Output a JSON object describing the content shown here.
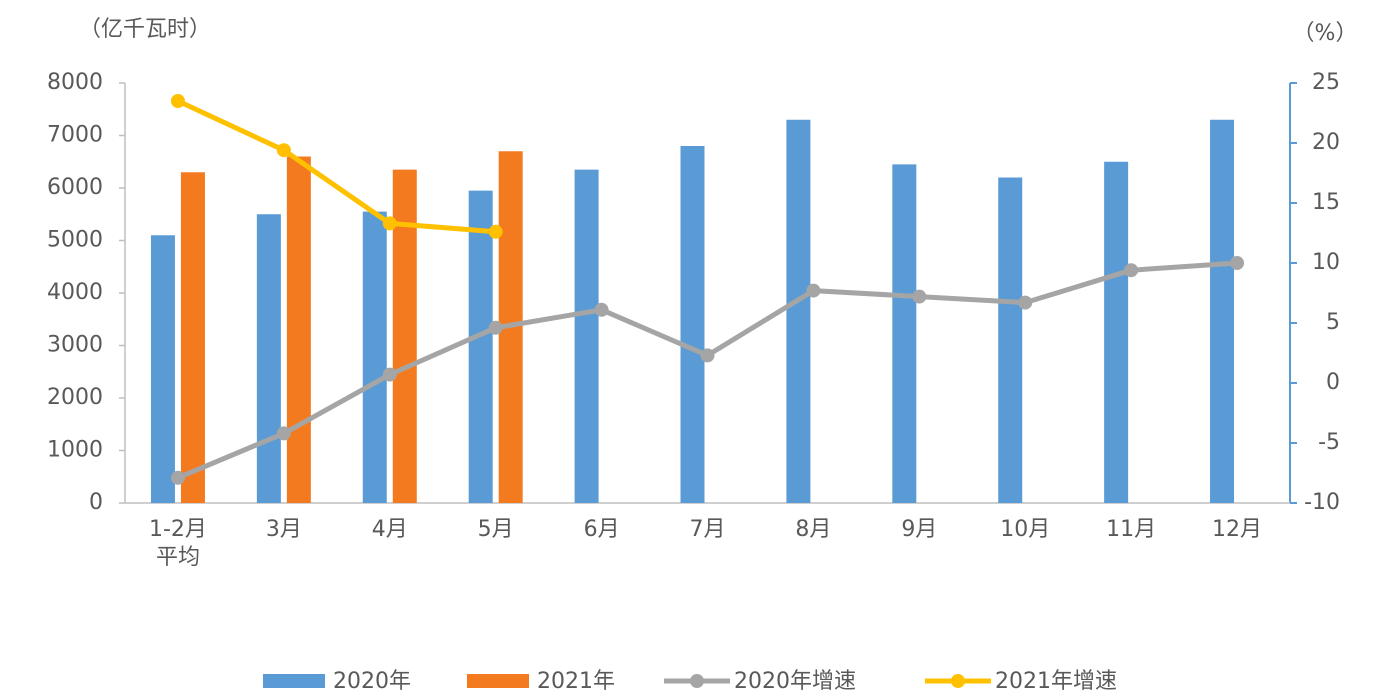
{
  "chart_data": {
    "type": "bar",
    "y_label": "（亿千瓦时）",
    "y2_label": "（%）",
    "categories": [
      "1-2月平均",
      "3月",
      "4月",
      "5月",
      "6月",
      "7月",
      "8月",
      "9月",
      "10月",
      "11月",
      "12月"
    ],
    "series": [
      {
        "name": "2020年",
        "color": "#5b9bd5",
        "values": [
          5100,
          5500,
          5550,
          5950,
          6350,
          6800,
          7300,
          6450,
          6200,
          6500,
          7300
        ]
      },
      {
        "name": "2021年",
        "color": "#f47a20",
        "values": [
          6300,
          6600,
          6350,
          6700,
          null,
          null,
          null,
          null,
          null,
          null,
          null
        ]
      },
      {
        "name": "2020年增速",
        "type": "line",
        "axis": "y2",
        "color": "#a5a5a5",
        "values": [
          -7.9,
          -4.2,
          0.7,
          4.6,
          6.1,
          2.3,
          7.7,
          7.2,
          6.7,
          9.4,
          10.0
        ]
      },
      {
        "name": "2021年增速",
        "type": "line",
        "axis": "y2",
        "color": "#ffc000",
        "values": [
          23.5,
          19.4,
          13.3,
          12.6,
          null,
          null,
          null,
          null,
          null,
          null,
          null
        ]
      }
    ],
    "ylim": [
      0,
      8000
    ],
    "yticks": [
      0,
      1000,
      2000,
      3000,
      4000,
      5000,
      6000,
      7000,
      8000
    ],
    "y2lim": [
      -10,
      25
    ],
    "y2ticks": [
      -10,
      -5,
      0,
      5,
      10,
      15,
      20,
      25
    ],
    "legend": "bottom"
  }
}
